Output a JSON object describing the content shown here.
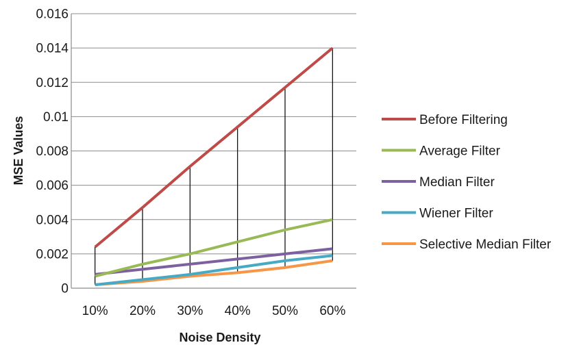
{
  "chart_data": {
    "type": "line",
    "xlabel": "Noise Density",
    "ylabel": "MSE Values",
    "categories": [
      "10%",
      "20%",
      "30%",
      "40%",
      "50%",
      "60%"
    ],
    "ylim": [
      0,
      0.016
    ],
    "yticks": [
      "0",
      "0.002",
      "0.004",
      "0.006",
      "0.008",
      "0.01",
      "0.012",
      "0.014",
      "0.016"
    ],
    "grid": "horizontal",
    "drop_lines": true,
    "legend_position": "right",
    "series": [
      {
        "name": "Before Filtering",
        "color": "#be4b48",
        "values": [
          0.0024,
          0.0047,
          0.0071,
          0.0094,
          0.0117,
          0.014
        ]
      },
      {
        "name": "Average Filter",
        "color": "#98b954",
        "values": [
          0.0007,
          0.0014,
          0.002,
          0.0027,
          0.0034,
          0.004
        ]
      },
      {
        "name": "Median Filter",
        "color": "#7d60a0",
        "values": [
          0.0008,
          0.0011,
          0.0014,
          0.0017,
          0.002,
          0.0023
        ]
      },
      {
        "name": "Wiener Filter",
        "color": "#46aac5",
        "values": [
          0.0002,
          0.0005,
          0.0008,
          0.0012,
          0.0016,
          0.0019
        ]
      },
      {
        "name": "Selective Median Filter",
        "color": "#f79646",
        "values": [
          0.0002,
          0.0004,
          0.0007,
          0.0009,
          0.0012,
          0.0016
        ]
      }
    ]
  }
}
